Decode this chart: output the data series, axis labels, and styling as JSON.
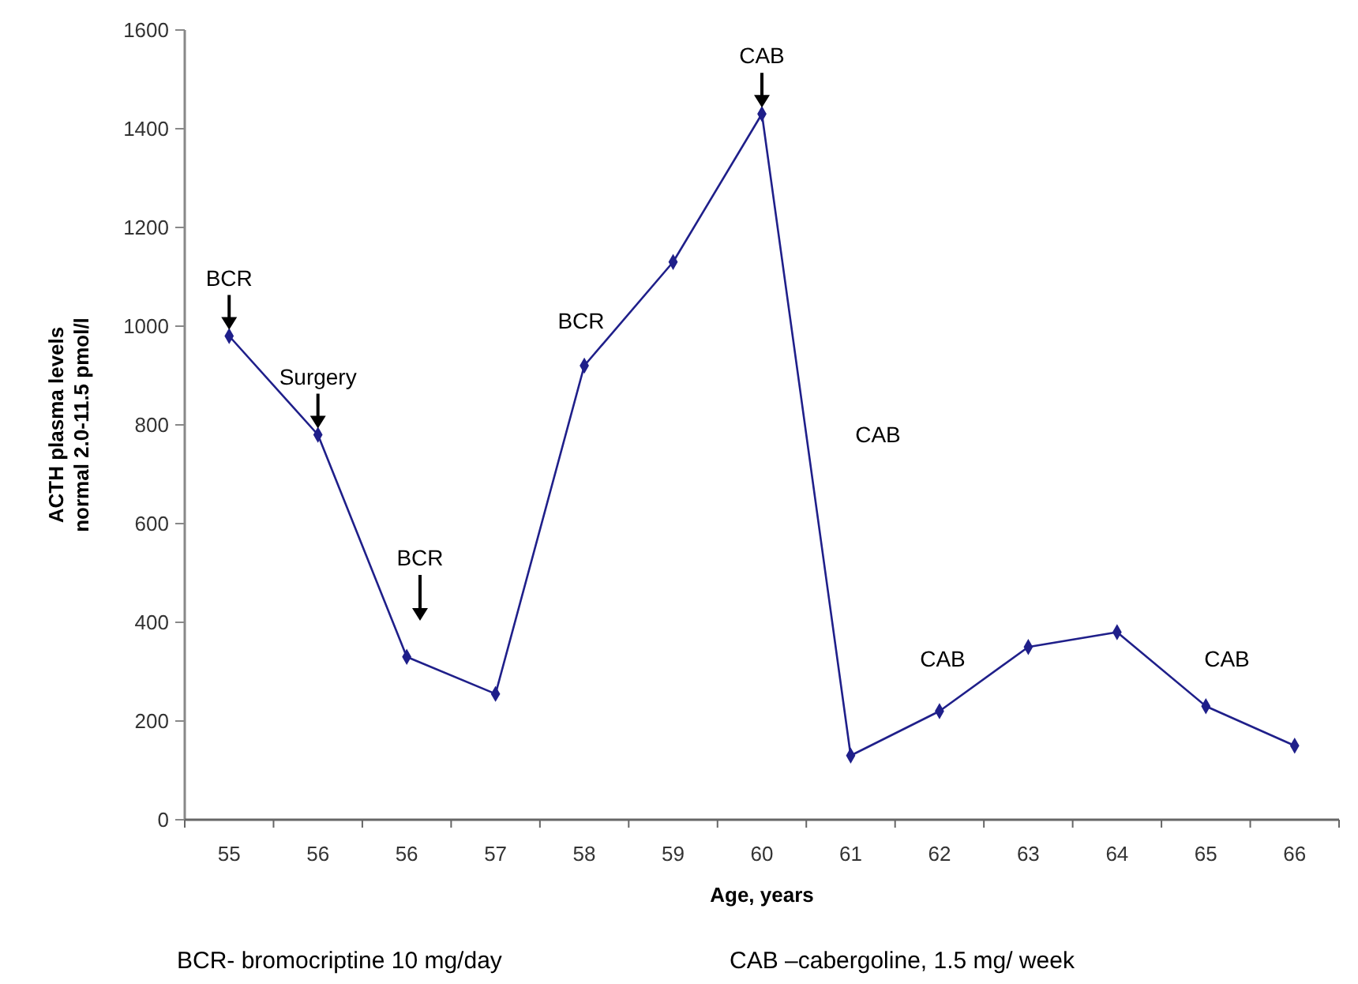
{
  "chart_data": {
    "type": "line",
    "xlabel": "Age, years",
    "ylabel": "ACTH plasma levels\nnormal 2.0-11.5 pmol/l",
    "categories": [
      "55",
      "56",
      "56",
      "57",
      "58",
      "59",
      "60",
      "61",
      "62",
      "63",
      "64",
      "65",
      "66"
    ],
    "series": [
      {
        "color": "#1f1f8a",
        "values": [
          980,
          780,
          330,
          255,
          920,
          1130,
          1430,
          130,
          220,
          350,
          380,
          230,
          150
        ]
      }
    ],
    "ylim": [
      0,
      1600
    ],
    "yticks": [
      0,
      200,
      400,
      600,
      800,
      1000,
      1200,
      1400,
      1600
    ],
    "marker": "diamond",
    "line_style": "solid",
    "grid": false,
    "annotations": [
      {
        "text": "BCR",
        "x": "55",
        "y": 980
      },
      {
        "text": "Surgery",
        "x": "56",
        "y": 780
      },
      {
        "text": "CAB",
        "x": "60",
        "y": 1430
      },
      "BCR",
      "BCR",
      "CAB",
      "CAB",
      "CAB",
      "BCR- bromocriptine 10 mg/day",
      "CAB –cabergoline, 1.5 mg/ week"
    ]
  }
}
